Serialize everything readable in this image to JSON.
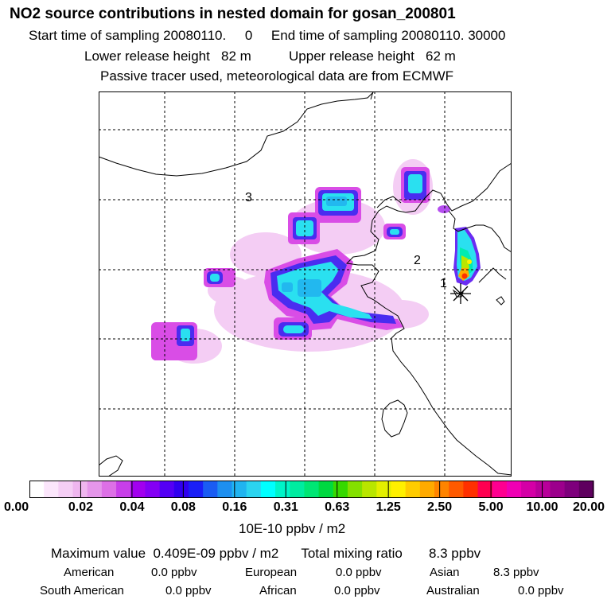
{
  "header": {
    "title": "NO2 source contributions in nested domain for gosan_200801",
    "line1": "Start time of sampling 20080110.     0     End time of sampling 20080110. 30000",
    "line2": "Lower release height   82 m          Upper release height   62 m",
    "line3": "Passive tracer used, meteorological data are from ECMWF"
  },
  "map": {
    "labels": [
      "1",
      "2",
      "3"
    ],
    "receptor_icon": "asterisk-icon",
    "grid": "dashed"
  },
  "colorbar": {
    "ticks": [
      "0.00",
      "0.02",
      "0.04",
      "0.08",
      "0.16",
      "0.31",
      "0.63",
      "1.25",
      "2.50",
      "5.00",
      "10.00",
      "20.00"
    ],
    "units": "10E-10 ppbv / m2",
    "colors": [
      "#ffffff",
      "#fbe6fb",
      "#f5cef5",
      "#efb6ef",
      "#e596ea",
      "#dd70e6",
      "#c83fe9",
      "#a200ef",
      "#8400f5",
      "#5400f5",
      "#3000f0",
      "#1a1ff7",
      "#1a5cf3",
      "#1d8ff0",
      "#20b4f0",
      "#2bd4f0",
      "#00ffff",
      "#00f4c8",
      "#00eca0",
      "#00e674",
      "#00d940",
      "#36d900",
      "#84e000",
      "#b9e600",
      "#e4ef00",
      "#fff000",
      "#ffcc00",
      "#ffaa00",
      "#ff8400",
      "#ff5a00",
      "#ff3000",
      "#ff0050",
      "#ff0090",
      "#f000b4",
      "#d400a6",
      "#b8009a",
      "#9c008c",
      "#7e007c",
      "#5e005e"
    ]
  },
  "summary": {
    "max_line": "Maximum value  0.409E-09 ppbv / m2      Total mixing ratio       8.3 ppbv",
    "american_label": "American",
    "american_value": "0.0 ppbv",
    "european_label": "European",
    "european_value": "0.0 ppbv",
    "asian_label": "Asian",
    "asian_value": "8.3 ppbv",
    "south_american_label": "South American",
    "south_american_value": "0.0 ppbv",
    "african_label": "African",
    "african_value": "0.0 ppbv",
    "australian_label": "Australian",
    "australian_value": "0.0 ppbv"
  }
}
